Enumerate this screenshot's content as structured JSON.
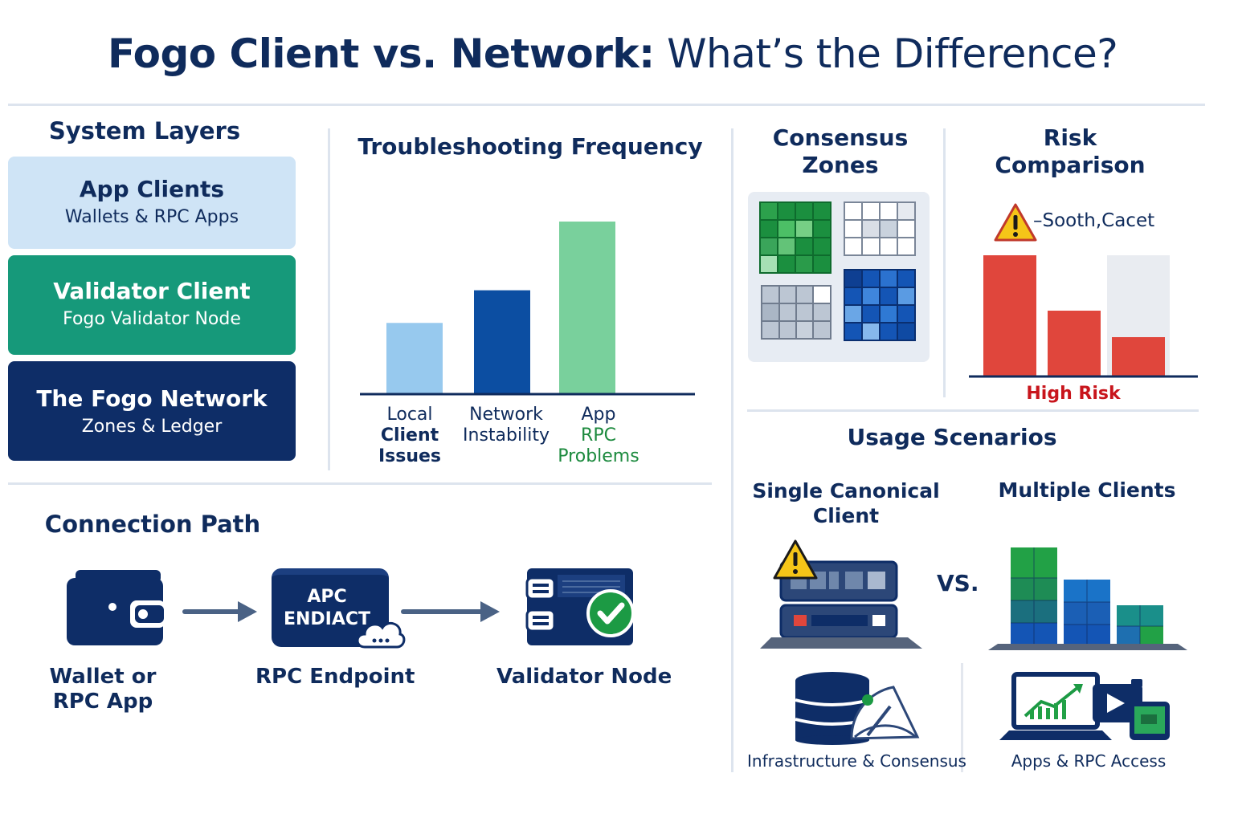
{
  "title": {
    "bold": "Fogo Client vs. Network:",
    "light": "What’s the Difference?"
  },
  "system_layers": {
    "heading": "System Layers",
    "layers": [
      {
        "title": "App Clients",
        "subtitle": "Wallets & RPC Apps"
      },
      {
        "title": "Validator Client",
        "subtitle": "Fogo Validator Node"
      },
      {
        "title": "The Fogo Network",
        "subtitle": "Zones & Ledger"
      }
    ]
  },
  "chart_data": [
    {
      "type": "bar",
      "title": "Troubleshooting Frequency",
      "categories": [
        "Local Client Issues",
        "Network Instability",
        "App RPC Problems"
      ],
      "category_lines": [
        [
          "Local",
          "Client",
          "Issues"
        ],
        [
          "Network",
          "Instability"
        ],
        [
          "App",
          "RPC",
          "Problems"
        ]
      ],
      "values": [
        41,
        60,
        100
      ],
      "colors": [
        "#97c9ee",
        "#0c4ea2",
        "#79d09c"
      ],
      "ylim": [
        0,
        100
      ]
    },
    {
      "type": "bar",
      "title": "Risk Comparison",
      "categories": [
        "",
        "",
        ""
      ],
      "values": [
        100,
        54,
        32
      ],
      "background_values": [
        null,
        null,
        100
      ],
      "colors": [
        "#e0463c",
        "#e0463c",
        "#e0463c"
      ],
      "annotation": "–Sooth,Cacet",
      "xlabel": "High Risk",
      "xlabel_color": "#c8151c",
      "ylim": [
        0,
        100
      ]
    }
  ],
  "consensus_zones": {
    "heading": "Consensus Zones",
    "heading_lines": [
      "Consensus",
      "Zones"
    ]
  },
  "risk_heading_lines": [
    "Risk",
    "Comparison"
  ],
  "connection_path": {
    "heading": "Connection Path",
    "nodes": [
      {
        "label_lines": [
          "Wallet or",
          "RPC App"
        ],
        "icon": "wallet-icon"
      },
      {
        "label_lines": [
          "RPC Endpoint"
        ],
        "icon": "rpc-endpoint-icon",
        "icon_text": [
          "APC",
          "ENDIACT"
        ]
      },
      {
        "label_lines": [
          "Validator Node"
        ],
        "icon": "validator-node-icon"
      }
    ]
  },
  "usage_scenarios": {
    "heading": "Usage Scenarios",
    "left": {
      "title_lines": [
        "Single Canonical",
        "Client"
      ],
      "caption": "Infrastructure & Consensus"
    },
    "vs": "VS.",
    "right": {
      "title_lines": [
        "Multiple Clients"
      ],
      "caption": "Apps & RPC Access"
    }
  },
  "colors": {
    "navy": "#0f2b5c",
    "green": "#16997a",
    "light_blue": "#cfe4f6",
    "risk_red": "#e0463c",
    "warning_yellow": "#f5c518"
  }
}
